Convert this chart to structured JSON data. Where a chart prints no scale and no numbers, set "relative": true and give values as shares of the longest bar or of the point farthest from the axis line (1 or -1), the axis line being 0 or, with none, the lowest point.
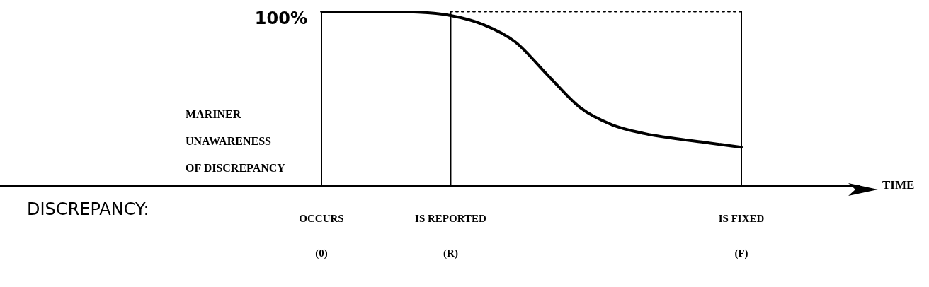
{
  "chart_data": {
    "type": "line",
    "relative": true,
    "ylabel": "MARINER\nUNAWARENESS\nOF DISCREPANCY",
    "categories": [
      "OCCURS\n(0)",
      null,
      null,
      null,
      "IS REPORTED\n(R)",
      null,
      null,
      null,
      null,
      null,
      null,
      null,
      null,
      "IS FIXED\n(F)"
    ],
    "series": [
      {
        "color": "#000000",
        "line_style": "solid",
        "values": [
          1,
          1,
          0.998,
          0.995,
          0.976,
          0.925,
          0.825,
          0.635,
          0.45,
          0.35,
          0.3,
          0.27,
          0.246,
          0.222
        ]
      },
      {
        "color": "#000000",
        "line_style": "dotted",
        "values": [
          null,
          null,
          null,
          null,
          1,
          1,
          1,
          1,
          1,
          1,
          1,
          1,
          1,
          1
        ]
      }
    ],
    "ref_lines": [
      {
        "axis": "x",
        "value": "OCCURS\n(0)"
      },
      {
        "axis": "x",
        "value": "IS REPORTED\n(R)"
      },
      {
        "axis": "x",
        "value": "IS FIXED\n(F)"
      }
    ],
    "annotations": [
      "DISCREPANCY:",
      "100%",
      "TIME"
    ],
    "grid": false,
    "legend": false,
    "marker": "none"
  }
}
